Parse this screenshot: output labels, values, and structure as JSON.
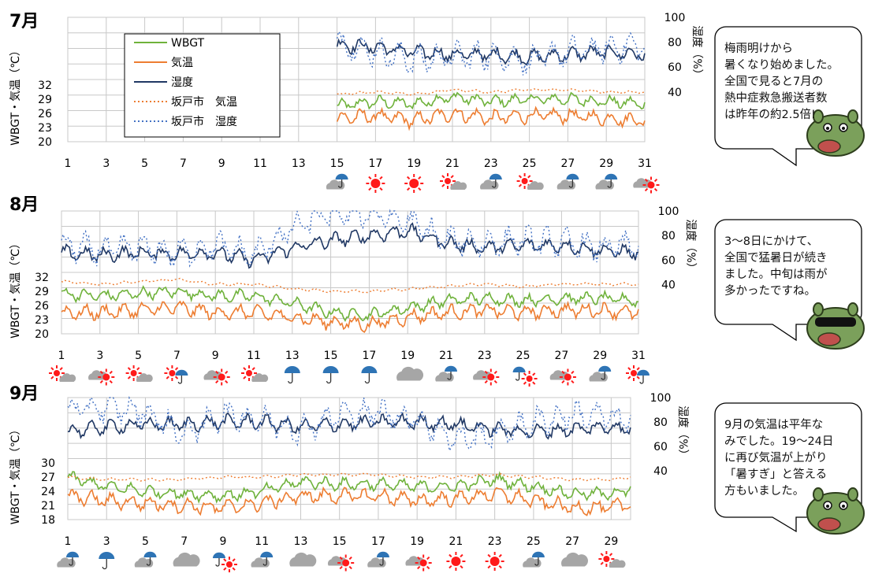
{
  "y_axis_title_left": "WBGT・気温（℃）",
  "y_axis_title_right": "湿度（%）",
  "colors": {
    "wbgt": "#6fb23b",
    "temperature": "#ed7d31",
    "humidity": "#203864",
    "sakado_temperature": "#ed7d31",
    "sakado_humidity": "#4472c4",
    "grid": "#c8c8c8",
    "sun": "#ff1a1a",
    "umbrella": "#2e74b5",
    "cloud": "#a6a6a6"
  },
  "legend": [
    {
      "label": "WBGT",
      "style": "solid",
      "color_key": "wbgt"
    },
    {
      "label": "気温",
      "style": "solid",
      "color_key": "temperature"
    },
    {
      "label": "湿度",
      "style": "solid",
      "color_key": "humidity"
    },
    {
      "label": "坂戸市　気温",
      "style": "dotted",
      "color_key": "sakado_temperature"
    },
    {
      "label": "坂戸市　湿度",
      "style": "dotted",
      "color_key": "sakado_humidity"
    }
  ],
  "chart_data": [
    {
      "type": "line",
      "title": "7月",
      "x_ticks": [
        "1",
        "3",
        "5",
        "7",
        "9",
        "11",
        "13",
        "15",
        "17",
        "19",
        "21",
        "23",
        "25",
        "27",
        "29",
        "31"
      ],
      "xlim": [
        1,
        31
      ],
      "y_left_ticks": [
        "20",
        "23",
        "26",
        "29",
        "32"
      ],
      "y_left_range": [
        20,
        35
      ],
      "y_right_ticks": [
        "40",
        "60",
        "80",
        "100"
      ],
      "y_right_range": [
        0,
        100
      ],
      "data_start_day": 15,
      "series": [
        {
          "name": "WBGT",
          "x": [
            15,
            17,
            19,
            21,
            23,
            25,
            27,
            29,
            31
          ],
          "values": [
            27.5,
            28.5,
            28,
            29.5,
            28.5,
            29,
            29,
            28.5,
            28
          ]
        },
        {
          "name": "気温",
          "x": [
            15,
            17,
            19,
            21,
            23,
            25,
            27,
            29,
            31
          ],
          "values": [
            25,
            25.5,
            24.5,
            26,
            25,
            25.5,
            25.5,
            25,
            24.5
          ]
        },
        {
          "name": "湿度",
          "x": [
            15,
            17,
            19,
            21,
            23,
            25,
            27,
            29,
            31
          ],
          "values": [
            78,
            76,
            72,
            70,
            70,
            68,
            70,
            72,
            70
          ]
        },
        {
          "name": "坂戸市　気温",
          "x": [
            15,
            17,
            19,
            21,
            23,
            25,
            27,
            29,
            31
          ],
          "values": [
            30,
            30.5,
            30,
            31,
            30.5,
            31,
            31,
            30.5,
            30.5
          ]
        },
        {
          "name": "坂戸市　湿度",
          "x": [
            15,
            17,
            19,
            21,
            23,
            25,
            27,
            29,
            31
          ],
          "values": [
            80,
            72,
            66,
            68,
            70,
            65,
            72,
            75,
            78
          ]
        }
      ],
      "weather": [
        {
          "day": 15,
          "icon": "umbrella-cloud-icon"
        },
        {
          "day": 17,
          "icon": "sun-icon"
        },
        {
          "day": 19,
          "icon": "sun-icon"
        },
        {
          "day": 21,
          "icon": "sun-cloud-icon"
        },
        {
          "day": 23,
          "icon": "umbrella-cloud-icon"
        },
        {
          "day": 25,
          "icon": "sun-cloud-icon"
        },
        {
          "day": 27,
          "icon": "umbrella-cloud-icon"
        },
        {
          "day": 29,
          "icon": "umbrella-cloud-icon"
        },
        {
          "day": 31,
          "icon": "cloud-sun-icon"
        }
      ],
      "comment": "梅雨明けから\n暑くなり始めました。\n全国で見ると7月の\n熱中症救急搬送者数\nは昨年の約2.5倍!"
    },
    {
      "type": "line",
      "title": "8月",
      "x_ticks": [
        "1",
        "3",
        "5",
        "7",
        "9",
        "11",
        "13",
        "15",
        "17",
        "19",
        "21",
        "23",
        "25",
        "27",
        "29",
        "31"
      ],
      "xlim": [
        1,
        31
      ],
      "y_left_ticks": [
        "20",
        "23",
        "26",
        "29",
        "32"
      ],
      "y_left_range": [
        20,
        35
      ],
      "y_right_ticks": [
        "40",
        "60",
        "80",
        "100"
      ],
      "y_right_range": [
        0,
        100
      ],
      "data_start_day": 1,
      "series": [
        {
          "name": "WBGT",
          "x": [
            1,
            3,
            5,
            7,
            9,
            11,
            13,
            15,
            17,
            19,
            21,
            23,
            25,
            27,
            29,
            31
          ],
          "values": [
            28.5,
            28,
            28.5,
            29,
            28,
            28,
            26.5,
            24.5,
            24,
            25.5,
            27,
            27.5,
            27,
            27.5,
            27.5,
            27
          ]
        },
        {
          "name": "気温",
          "x": [
            1,
            3,
            5,
            7,
            9,
            11,
            13,
            15,
            17,
            19,
            21,
            23,
            25,
            27,
            29,
            31
          ],
          "values": [
            24.5,
            24.5,
            25,
            25.5,
            24.5,
            24.5,
            23.5,
            22.5,
            22,
            23.5,
            24.5,
            25,
            24.5,
            25,
            25,
            24.5
          ]
        },
        {
          "name": "湿度",
          "x": [
            1,
            3,
            5,
            7,
            9,
            11,
            13,
            15,
            17,
            19,
            21,
            23,
            25,
            27,
            29,
            31
          ],
          "values": [
            66,
            64,
            66,
            65,
            66,
            60,
            70,
            76,
            80,
            84,
            74,
            70,
            72,
            72,
            68,
            66
          ]
        },
        {
          "name": "坂戸市　気温",
          "x": [
            1,
            3,
            5,
            7,
            9,
            11,
            13,
            15,
            17,
            19,
            21,
            23,
            25,
            27,
            29,
            31
          ],
          "values": [
            31,
            30.5,
            31,
            31.5,
            30.5,
            30.5,
            29.5,
            29,
            29,
            29.5,
            30,
            30.5,
            30,
            30.5,
            30.5,
            30.5
          ]
        },
        {
          "name": "坂戸市　湿度",
          "x": [
            1,
            3,
            5,
            7,
            9,
            11,
            13,
            15,
            17,
            19,
            21,
            23,
            25,
            27,
            29,
            31
          ],
          "values": [
            72,
            68,
            70,
            66,
            72,
            64,
            86,
            98,
            98,
            92,
            76,
            74,
            76,
            74,
            70,
            72
          ]
        }
      ],
      "weather": [
        {
          "day": 1,
          "icon": "sun-cloud-icon"
        },
        {
          "day": 3,
          "icon": "cloud-sun-icon"
        },
        {
          "day": 5,
          "icon": "sun-cloud-icon"
        },
        {
          "day": 7,
          "icon": "sun-umbrella-icon"
        },
        {
          "day": 9,
          "icon": "cloud-sun-icon"
        },
        {
          "day": 11,
          "icon": "sun-cloud-icon"
        },
        {
          "day": 13,
          "icon": "umbrella-icon"
        },
        {
          "day": 15,
          "icon": "umbrella-icon"
        },
        {
          "day": 17,
          "icon": "umbrella-icon"
        },
        {
          "day": 19,
          "icon": "cloud-icon"
        },
        {
          "day": 21,
          "icon": "umbrella-cloud-icon"
        },
        {
          "day": 23,
          "icon": "cloud-sun-icon"
        },
        {
          "day": 25,
          "icon": "umbrella-sun-icon"
        },
        {
          "day": 27,
          "icon": "cloud-sun-icon"
        },
        {
          "day": 29,
          "icon": "umbrella-cloud-icon"
        },
        {
          "day": 31,
          "icon": "sun-umbrella-icon"
        }
      ],
      "comment": "3～8日にかけて、\n全国で猛暑日が続き\nました。中旬は雨が\n多かったですね。"
    },
    {
      "type": "line",
      "title": "9月",
      "x_ticks": [
        "1",
        "3",
        "5",
        "7",
        "9",
        "11",
        "13",
        "15",
        "17",
        "19",
        "21",
        "23",
        "25",
        "27",
        "29"
      ],
      "xlim": [
        1,
        30
      ],
      "y_left_ticks": [
        "18",
        "21",
        "24",
        "27",
        "30"
      ],
      "y_left_range": [
        18,
        33
      ],
      "y_right_ticks": [
        "40",
        "60",
        "80",
        "100"
      ],
      "y_right_range": [
        0,
        100
      ],
      "data_start_day": 1,
      "series": [
        {
          "name": "WBGT",
          "x": [
            1,
            3,
            5,
            7,
            9,
            11,
            13,
            15,
            17,
            19,
            21,
            23,
            25,
            27,
            29,
            30
          ],
          "values": [
            27,
            25,
            24,
            23.5,
            23,
            24,
            26,
            25.5,
            25.5,
            25,
            25,
            26.5,
            25,
            23.5,
            23.5,
            24.5
          ]
        },
        {
          "name": "気温",
          "x": [
            1,
            3,
            5,
            7,
            9,
            11,
            13,
            15,
            17,
            19,
            21,
            23,
            25,
            27,
            29,
            30
          ],
          "values": [
            23,
            22,
            21.5,
            21,
            20.5,
            21.5,
            23,
            23,
            23,
            22,
            22.5,
            23.5,
            22,
            20.5,
            20.5,
            21.5
          ]
        },
        {
          "name": "湿度",
          "x": [
            1,
            3,
            5,
            7,
            9,
            11,
            13,
            15,
            17,
            19,
            21,
            23,
            25,
            27,
            29,
            30
          ],
          "values": [
            72,
            76,
            78,
            78,
            80,
            80,
            76,
            78,
            80,
            80,
            78,
            74,
            72,
            74,
            76,
            74
          ]
        },
        {
          "name": "坂戸市　気温",
          "x": [
            1,
            3,
            5,
            7,
            9,
            11,
            13,
            15,
            17,
            19,
            21,
            23,
            25,
            27,
            29,
            30
          ],
          "values": [
            27,
            26.5,
            26.5,
            26.5,
            27,
            27,
            27.5,
            27.5,
            27.5,
            27,
            27,
            27.5,
            27,
            26.5,
            26.5,
            27
          ]
        },
        {
          "name": "坂戸市　湿度",
          "x": [
            1,
            3,
            5,
            7,
            9,
            11,
            13,
            15,
            17,
            19,
            21,
            23,
            25,
            27,
            29,
            30
          ],
          "values": [
            90,
            92,
            88,
            70,
            86,
            82,
            74,
            86,
            88,
            82,
            66,
            70,
            80,
            86,
            84,
            80
          ]
        }
      ],
      "weather": [
        {
          "day": 1,
          "icon": "umbrella-cloud-icon"
        },
        {
          "day": 3,
          "icon": "umbrella-icon"
        },
        {
          "day": 5,
          "icon": "umbrella-cloud-icon"
        },
        {
          "day": 7,
          "icon": "cloud-icon"
        },
        {
          "day": 9,
          "icon": "umbrella-sun-icon"
        },
        {
          "day": 11,
          "icon": "umbrella-cloud-icon"
        },
        {
          "day": 13,
          "icon": "cloud-icon"
        },
        {
          "day": 15,
          "icon": "cloud-sun-icon"
        },
        {
          "day": 17,
          "icon": "umbrella-cloud-icon"
        },
        {
          "day": 19,
          "icon": "cloud-sun-icon"
        },
        {
          "day": 21,
          "icon": "sun-icon"
        },
        {
          "day": 23,
          "icon": "sun-icon"
        },
        {
          "day": 25,
          "icon": "umbrella-cloud-icon"
        },
        {
          "day": 27,
          "icon": "cloud-icon"
        },
        {
          "day": 29,
          "icon": "sun-cloud-icon"
        }
      ],
      "comment": "9月の気温は平年な\nみでした。19～24日\nに再び気温が上がり\n「暑すぎ」と答える\n方もいました。"
    }
  ]
}
